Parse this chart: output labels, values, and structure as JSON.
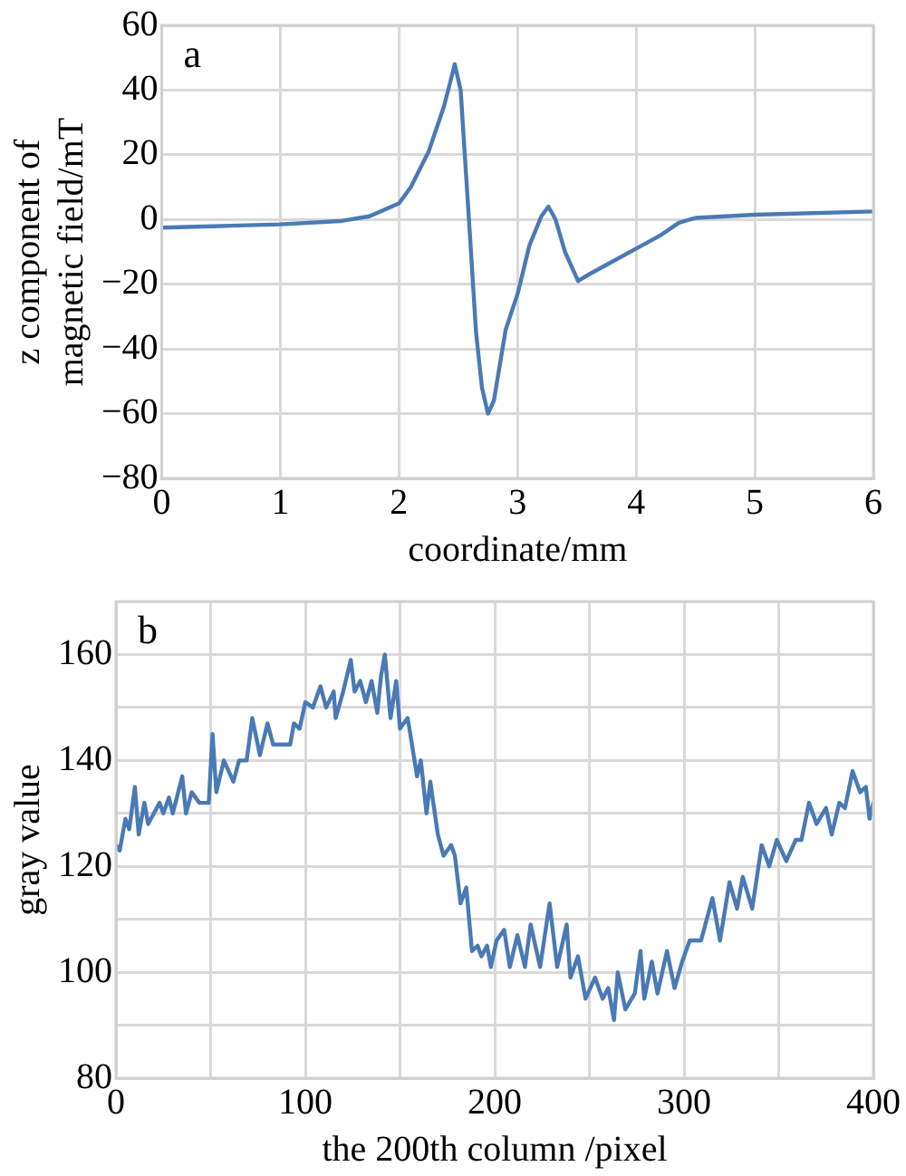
{
  "chart_data": [
    {
      "type": "line",
      "xlabel": "coordinate/mm",
      "ylabel": "z component of magnetic field/mT",
      "annotations": [
        "a"
      ],
      "xlim": [
        0,
        6
      ],
      "ylim": [
        -80,
        60
      ],
      "xticks": [
        0,
        1,
        2,
        3,
        4,
        5,
        6
      ],
      "yticks": [
        -80,
        -60,
        -40,
        -20,
        0,
        20,
        40,
        60
      ],
      "grid": true,
      "legend": false,
      "marker": "none",
      "line_style": "solid",
      "series": [
        {
          "color": "#4a7ab5",
          "x": [
            0,
            0.5,
            1,
            1.5,
            1.75,
            2,
            2.1,
            2.25,
            2.38,
            2.45,
            2.47,
            2.52,
            2.59,
            2.65,
            2.7,
            2.75,
            2.8,
            2.9,
            3,
            3.1,
            3.2,
            3.26,
            3.32,
            3.4,
            3.51,
            3.6,
            3.75,
            4,
            4.2,
            4.36,
            4.5,
            5,
            6
          ],
          "values": [
            -2.5,
            -2,
            -1.5,
            -0.5,
            1,
            5,
            10,
            21,
            35,
            45,
            48,
            40,
            0,
            -35,
            -52,
            -60,
            -56,
            -34,
            -23,
            -8,
            1,
            4,
            0,
            -10,
            -19,
            -17,
            -14,
            -9,
            -5,
            -1,
            0.5,
            1.5,
            2.5
          ]
        }
      ]
    },
    {
      "type": "line",
      "xlabel": "the 200th column /pixel",
      "ylabel": "gray value",
      "annotations": [
        "b"
      ],
      "xlim": [
        0,
        400
      ],
      "ylim": [
        80,
        170
      ],
      "xticks": [
        0,
        {
          "value": 50,
          "label": null
        },
        100,
        {
          "value": 150,
          "label": null
        },
        200,
        {
          "value": 250,
          "label": null
        },
        300,
        {
          "value": 350,
          "label": null
        },
        400
      ],
      "yticks": [
        80,
        {
          "value": 90,
          "label": null
        },
        100,
        {
          "value": 110,
          "label": null
        },
        120,
        {
          "value": 130,
          "label": null
        },
        140,
        {
          "value": 150,
          "label": null
        },
        160
      ],
      "grid": true,
      "legend": false,
      "marker": "none",
      "line_style": "solid",
      "series": [
        {
          "color": "#4a7ab5",
          "x": [
            0,
            2,
            5,
            7,
            10,
            12,
            15,
            17,
            20,
            23,
            25,
            28,
            30,
            35,
            37,
            40,
            44,
            49,
            51,
            53,
            57,
            62,
            65,
            69,
            72,
            76,
            80,
            83,
            92,
            94,
            97,
            100,
            104,
            108,
            111,
            115,
            116,
            120,
            124,
            126,
            129,
            132,
            135,
            138,
            140,
            142,
            145,
            148,
            150,
            154,
            155,
            159,
            161,
            164,
            166,
            170,
            173,
            177,
            179,
            182,
            185,
            188,
            191,
            193,
            196,
            198,
            201,
            205,
            208,
            212,
            216,
            219,
            224,
            229,
            233,
            238,
            240,
            244,
            248,
            253,
            257,
            260,
            263,
            265,
            269,
            274,
            277,
            279,
            283,
            286,
            291,
            295,
            299,
            303,
            309,
            315,
            319,
            324,
            328,
            331,
            336,
            341,
            345,
            349,
            354,
            359,
            362,
            366,
            370,
            375,
            378,
            382,
            385,
            389,
            393,
            396,
            398,
            400
          ],
          "values": [
            124,
            123,
            129,
            127,
            135,
            126,
            132,
            128,
            130,
            132,
            130,
            133,
            130,
            137,
            130,
            134,
            132,
            132,
            145,
            134,
            140,
            136,
            140,
            140,
            148,
            141,
            147,
            143,
            143,
            147,
            146,
            151,
            150,
            154,
            150,
            153,
            148,
            153,
            159,
            153,
            155,
            151,
            155,
            149,
            156,
            160,
            148,
            155,
            146,
            148,
            146,
            137,
            140,
            130,
            136,
            126,
            122,
            124,
            122,
            113,
            116,
            104,
            105,
            103,
            105,
            101,
            106,
            108,
            101,
            107,
            101,
            109,
            101,
            113,
            101,
            109,
            99,
            103,
            95,
            99,
            95,
            97,
            91,
            100,
            93,
            96,
            104,
            95,
            102,
            96,
            104,
            97,
            102,
            106,
            106,
            114,
            106,
            117,
            112,
            118,
            112,
            124,
            120,
            125,
            121,
            125,
            125,
            132,
            128,
            131,
            126,
            132,
            131,
            138,
            134,
            135,
            129,
            132
          ]
        }
      ]
    }
  ]
}
